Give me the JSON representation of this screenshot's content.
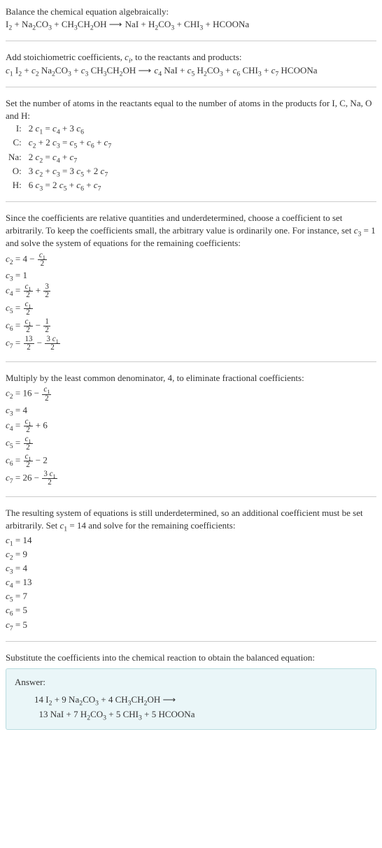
{
  "title": "Balance the chemical equation algebraically:",
  "main_equation_left": "I₂ + Na₂CO₃ + CH₃CH₂OH",
  "arrow": "⟶",
  "main_equation_right": "NaI + H₂CO₃ + CHI₃ + HCOONa",
  "step1_text": "Add stoichiometric coefficients, ",
  "step1_var": "cᵢ",
  "step1_text2": ", to the reactants and products:",
  "coeff_equation": "c₁ I₂ + c₂ Na₂CO₃ + c₃ CH₃CH₂OH ⟶ c₄ NaI + c₅ H₂CO₃ + c₆ CHI₃ + c₇ HCOONa",
  "step2_text": "Set the number of atoms in the reactants equal to the number of atoms in the products for I, C, Na, O and H:",
  "atoms": [
    {
      "label": "I:",
      "eq": "2 c₁ = c₄ + 3 c₆"
    },
    {
      "label": "C:",
      "eq": "c₂ + 2 c₃ = c₅ + c₆ + c₇"
    },
    {
      "label": "Na:",
      "eq": "2 c₂ = c₄ + c₇"
    },
    {
      "label": "O:",
      "eq": "3 c₂ + c₃ = 3 c₅ + 2 c₇"
    },
    {
      "label": "H:",
      "eq": "6 c₃ = 2 c₅ + c₆ + c₇"
    }
  ],
  "step3_text": "Since the coefficients are relative quantities and underdetermined, choose a coefficient to set arbitrarily. To keep the coefficients small, the arbitrary value is ordinarily one. For instance, set c₃ = 1 and solve the system of equations for the remaining coefficients:",
  "solve1": [
    {
      "lhs": "c₂ =",
      "rhs": "4 − ",
      "frac_num": "c₁",
      "frac_den": "2",
      "after": ""
    },
    {
      "lhs": "c₃ =",
      "rhs": "1",
      "frac_num": "",
      "frac_den": "",
      "after": ""
    },
    {
      "lhs": "c₄ =",
      "rhs": "",
      "frac_num": "c₁",
      "frac_den": "2",
      "after": " + ",
      "frac2_num": "3",
      "frac2_den": "2"
    },
    {
      "lhs": "c₅ =",
      "rhs": "",
      "frac_num": "c₁",
      "frac_den": "2",
      "after": ""
    },
    {
      "lhs": "c₆ =",
      "rhs": "",
      "frac_num": "c₁",
      "frac_den": "2",
      "after": " − ",
      "frac2_num": "1",
      "frac2_den": "2"
    },
    {
      "lhs": "c₇ =",
      "rhs": "",
      "frac_num": "13",
      "frac_den": "2",
      "after": " − ",
      "frac2_num": "3 c₁",
      "frac2_den": "2"
    }
  ],
  "step4_text": "Multiply by the least common denominator, 4, to eliminate fractional coefficients:",
  "solve2": [
    {
      "lhs": "c₂ =",
      "rhs": "16 − ",
      "frac_num": "c₁",
      "frac_den": "2",
      "after": ""
    },
    {
      "lhs": "c₃ =",
      "rhs": "4",
      "frac_num": "",
      "frac_den": "",
      "after": ""
    },
    {
      "lhs": "c₄ =",
      "rhs": "",
      "frac_num": "c₁",
      "frac_den": "2",
      "after": " + 6"
    },
    {
      "lhs": "c₅ =",
      "rhs": "",
      "frac_num": "c₁",
      "frac_den": "2",
      "after": ""
    },
    {
      "lhs": "c₆ =",
      "rhs": "",
      "frac_num": "c₁",
      "frac_den": "2",
      "after": " − 2"
    },
    {
      "lhs": "c₇ =",
      "rhs": "26 − ",
      "frac_num": "3 c₁",
      "frac_den": "2",
      "after": ""
    }
  ],
  "step5_text": "The resulting system of equations is still underdetermined, so an additional coefficient must be set arbitrarily. Set c₁ = 14 and solve for the remaining coefficients:",
  "final_coeffs": [
    "c₁ = 14",
    "c₂ = 9",
    "c₃ = 4",
    "c₄ = 13",
    "c₅ = 7",
    "c₆ = 5",
    "c₇ = 5"
  ],
  "step6_text": "Substitute the coefficients into the chemical reaction to obtain the balanced equation:",
  "answer_label": "Answer:",
  "answer_line1": "14 I₂ + 9 Na₂CO₃ + 4 CH₃CH₂OH ⟶",
  "answer_line2": "13 NaI + 7 H₂CO₃ + 5 CHI₃ + 5 HCOONa",
  "colors": {
    "text": "#333333",
    "hr": "#cccccc",
    "answer_bg": "#eaf6f8",
    "answer_border": "#b8dce0"
  },
  "typography": {
    "font_family": "Georgia, serif",
    "base_fontsize_pt": 10,
    "line_height": 1.4
  }
}
